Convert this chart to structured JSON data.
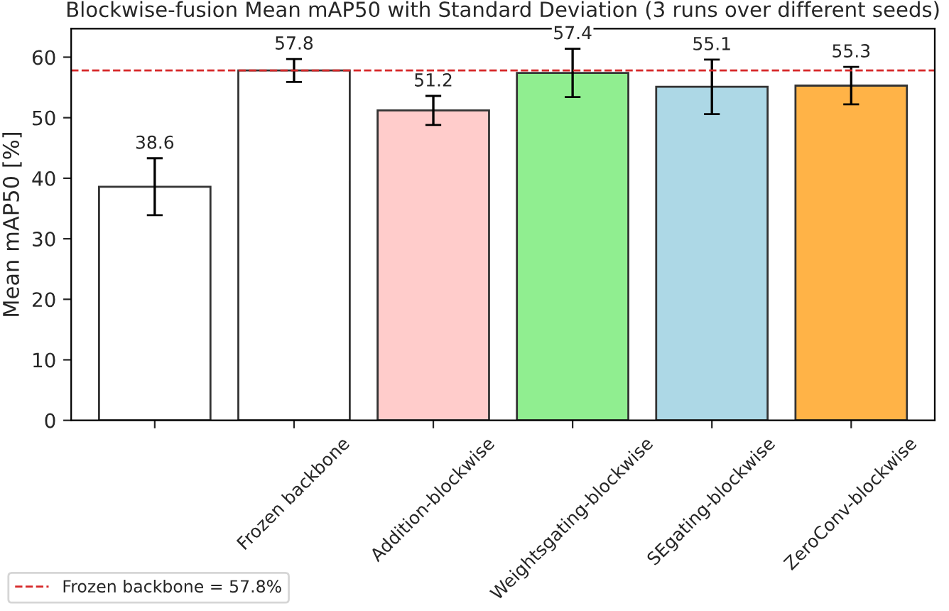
{
  "chart_data": {
    "type": "bar",
    "title": "Blockwise-fusion Mean mAP50 with Standard Deviation (3 runs over different seeds)",
    "ylabel": "Mean mAP50 [%]",
    "categories": [
      null,
      "Frozen backbone",
      "Addition-blockwise",
      "Weightsgating-blockwise",
      "SEgating-blockwise",
      "ZeroConv-blockwise"
    ],
    "values": [
      38.6,
      57.8,
      51.2,
      57.4,
      55.1,
      55.3
    ],
    "errors": [
      4.7,
      1.9,
      2.4,
      4.0,
      4.5,
      3.1
    ],
    "colors": [
      "#ffffff",
      "#ffffff",
      "#ffcccb",
      "#90ee90",
      "#add8e6",
      "#ffb347"
    ],
    "data_labels": true,
    "ylim": [
      0,
      64.7
    ],
    "yticks": [
      0,
      10,
      20,
      30,
      40,
      50,
      60
    ],
    "ref_lines": [
      {
        "axis": "y",
        "value": 57.8,
        "label": "Frozen backbone = 57.8%",
        "color": "#d62728",
        "line_style": "dashed"
      }
    ],
    "legend": "bottom left",
    "grid": false
  }
}
